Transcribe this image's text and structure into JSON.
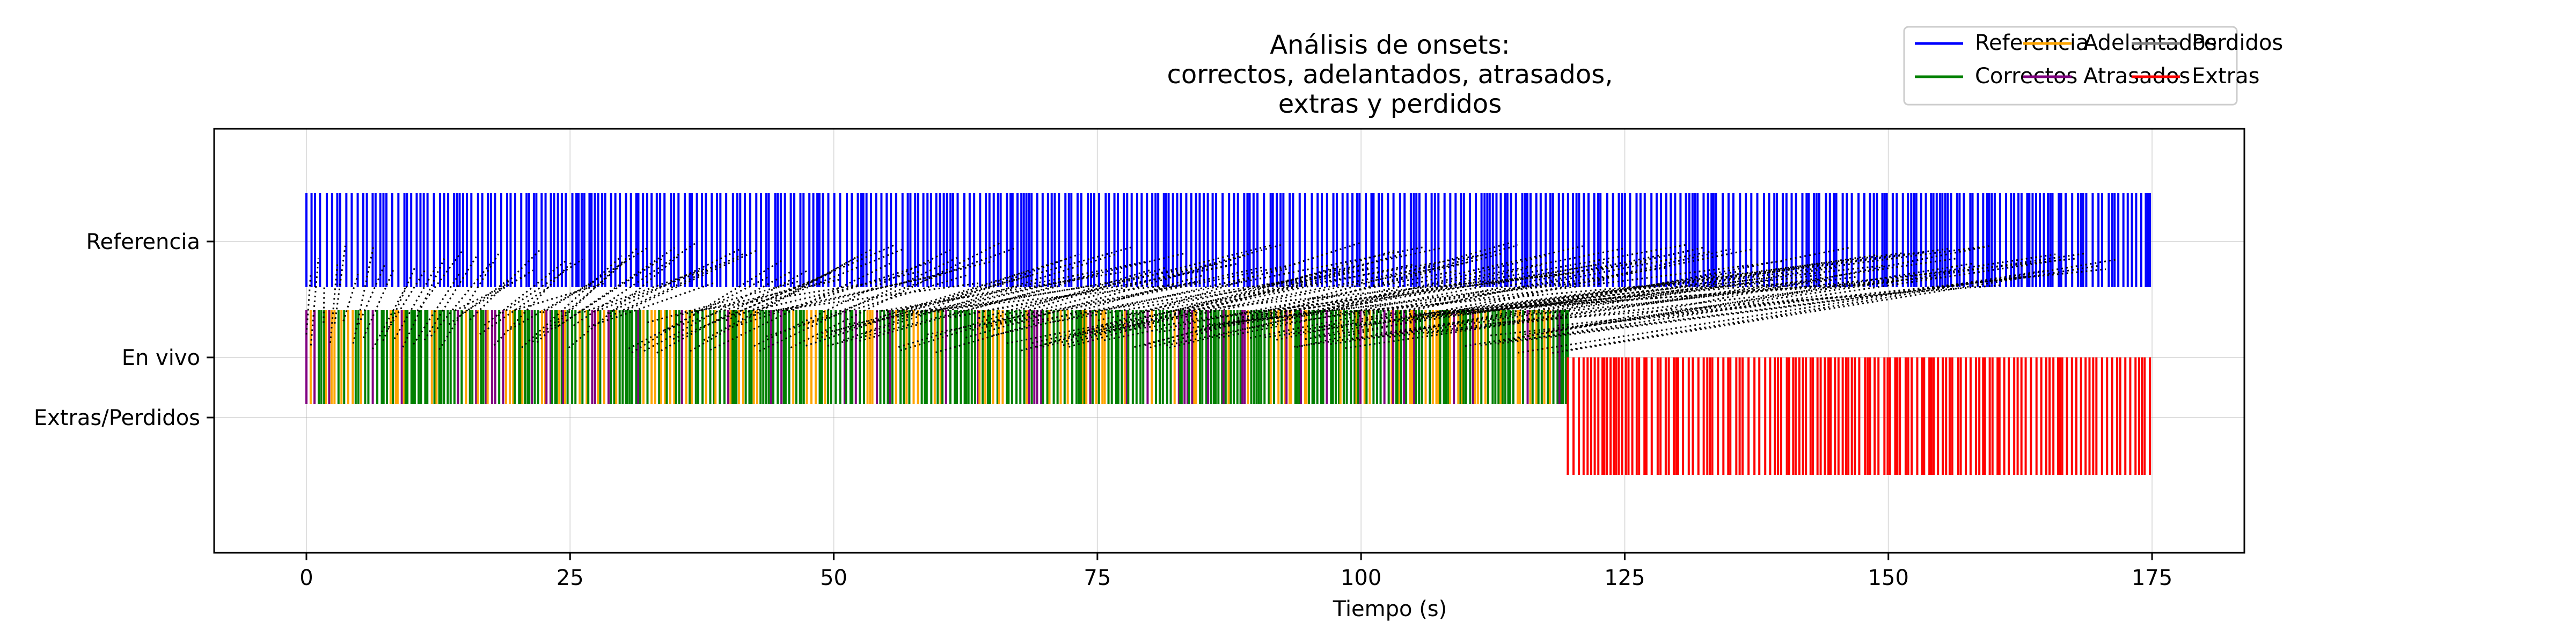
{
  "chart_data": {
    "type": "onset-event-plot",
    "title_lines": [
      "Análisis de onsets:",
      "correctos, adelantados, atrasados,",
      "extras y perdidos"
    ],
    "xlabel": "Tiempo (s)",
    "ylabel": "",
    "xlim": [
      -8.75,
      183.75
    ],
    "xticks": [
      0,
      25,
      50,
      75,
      100,
      125,
      150,
      175
    ],
    "rows": [
      "Referencia",
      "En vivo",
      "Extras/Perdidos"
    ],
    "grid": true,
    "legend": {
      "placement": "top-right, above plot",
      "columns": 3,
      "entries": [
        {
          "label": "Referencia",
          "color": "#0000ff"
        },
        {
          "label": "Correctos",
          "color": "#008000"
        },
        {
          "label": "Adelantados",
          "color": "#ffa500"
        },
        {
          "label": "Atrasados",
          "color": "#800080"
        },
        {
          "label": "Perdidos",
          "color": "#808080"
        },
        {
          "label": "Extras",
          "color": "#ff0000"
        }
      ]
    },
    "reference_onsets": {
      "start": 0,
      "end": 174.8,
      "approx_count": 420,
      "color": "#0000ff"
    },
    "live_onsets": {
      "start": 0,
      "end": 119.6,
      "approx_count": 420,
      "color_mix": {
        "#008000": 0.6,
        "#ffa500": 0.28,
        "#800080": 0.12
      }
    },
    "extras_onsets": {
      "start": 119.6,
      "end": 174.8,
      "approx_count": 150,
      "color": "#ff0000"
    },
    "match_lines": {
      "ref_span": [
        0,
        172
      ],
      "live_span": [
        0,
        119.6
      ],
      "color": "#000000",
      "style": "dotted"
    }
  }
}
